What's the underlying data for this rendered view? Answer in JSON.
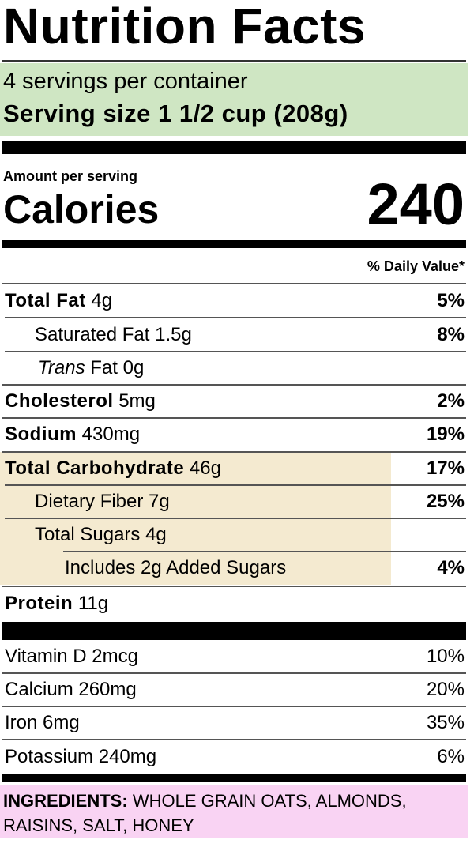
{
  "header": {
    "title": "Nutrition Facts",
    "servings": "4 servings per container",
    "serving_size_label": "Serving size",
    "serving_size": "1 1/2 cup (208g)"
  },
  "calories": {
    "amount_per_serving": "Amount per serving",
    "label": "Calories",
    "value": "240",
    "daily_value_header": "% Daily Value*"
  },
  "nutrients": [
    {
      "name": "Total Fat",
      "amount": "4g",
      "dv": "5%"
    },
    {
      "name": "Saturated Fat",
      "amount": "1.5g",
      "dv": "8%"
    },
    {
      "italic": "Trans",
      "name": "Fat",
      "amount": "0g"
    },
    {
      "name": "Cholesterol",
      "amount": "5mg",
      "dv": "2%"
    },
    {
      "name": "Sodium",
      "amount": "430mg",
      "dv": "19%"
    },
    {
      "name": "Total Carbohydrate",
      "amount": "46g",
      "dv": "17%"
    },
    {
      "name": "Dietary Fiber",
      "amount": "7g",
      "dv": "25%"
    },
    {
      "name": "Total Sugars",
      "amount": "4g"
    },
    {
      "name": "Includes 2g Added Sugars",
      "dv": "4%"
    },
    {
      "name": "Protein",
      "amount": "11g"
    }
  ],
  "vitamins": [
    {
      "name": "Vitamin D",
      "amount": "2mcg",
      "dv": "10%"
    },
    {
      "name": "Calcium",
      "amount": "260mg",
      "dv": "20%"
    },
    {
      "name": "Iron",
      "amount": "6mg",
      "dv": "35%"
    },
    {
      "name": "Potassium",
      "amount": "240mg",
      "dv": "6%"
    }
  ],
  "ingredients": {
    "label": "INGREDIENTS:",
    "text": "WHOLE GRAIN OATS, ALMONDS, RAISINS, SALT, HONEY"
  }
}
